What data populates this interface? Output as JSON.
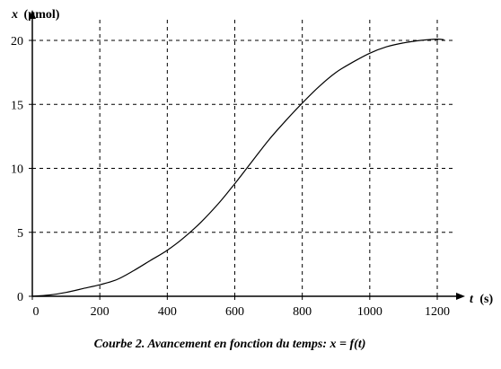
{
  "chart_data": {
    "type": "line",
    "title": "",
    "caption": "Courbe 2. Avancement en fonction du temps: x = f(t)",
    "xlabel_var": "t",
    "xlabel_unit": "(s)",
    "ylabel_var": "x",
    "ylabel_unit": "(µmol)",
    "xlim": [
      0,
      1250
    ],
    "ylim": [
      0,
      21
    ],
    "x_ticks": [
      0,
      200,
      400,
      600,
      800,
      1000,
      1200
    ],
    "y_ticks": [
      0,
      5,
      10,
      15,
      20
    ],
    "x_tick_labels": [
      "0",
      "200",
      "400",
      "600",
      "800",
      "1000",
      "1200"
    ],
    "y_tick_labels": [
      "0",
      "5",
      "10",
      "15",
      "20"
    ],
    "grid": true,
    "grid_style": "dashed",
    "line_color": "#000000",
    "series": [
      {
        "x": [
          0,
          50,
          100,
          150,
          200,
          250,
          300,
          350,
          400,
          450,
          500,
          550,
          600,
          650,
          700,
          750,
          800,
          850,
          900,
          950,
          1000,
          1050,
          1100,
          1150,
          1200,
          1220
        ],
        "values": [
          0,
          0.1,
          0.3,
          0.6,
          0.9,
          1.3,
          2.0,
          2.8,
          3.6,
          4.6,
          5.8,
          7.2,
          8.8,
          10.5,
          12.2,
          13.7,
          15.1,
          16.4,
          17.5,
          18.3,
          19.0,
          19.5,
          19.8,
          20.0,
          20.1,
          20.05
        ]
      }
    ]
  }
}
